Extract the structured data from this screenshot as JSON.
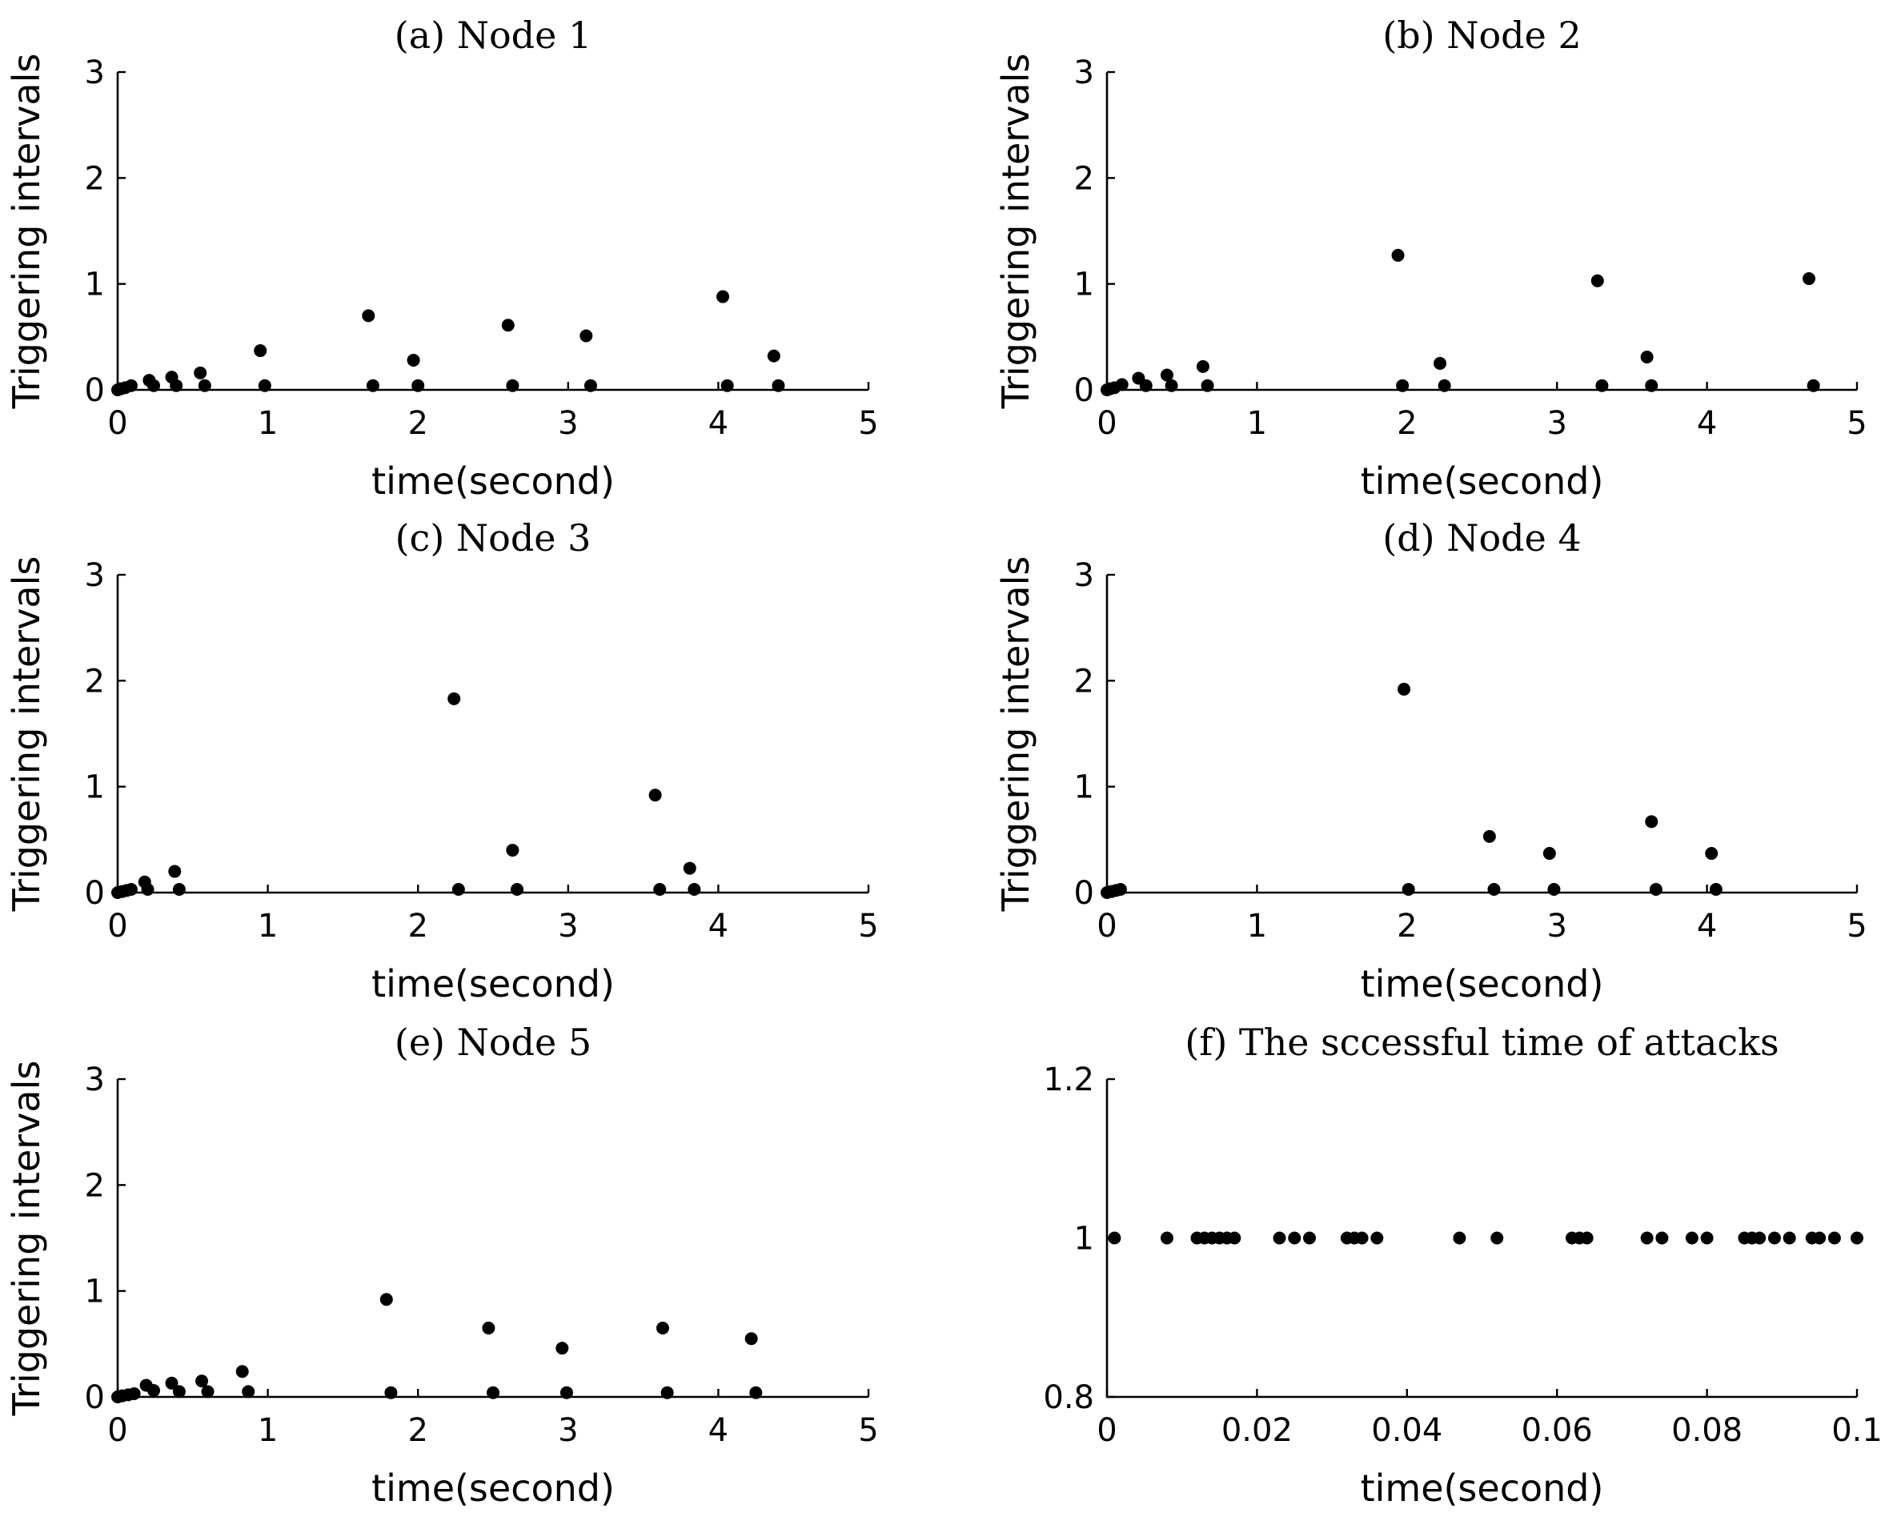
{
  "chart_data": [
    {
      "id": "a",
      "type": "scatter",
      "title": "(a) Node 1",
      "xlabel": "time(second)",
      "ylabel": "Triggering intervals",
      "xlim": [
        0,
        5
      ],
      "ylim": [
        0,
        3
      ],
      "xticks": [
        "0",
        "1",
        "2",
        "3",
        "4",
        "5"
      ],
      "yticks": [
        "0",
        "1",
        "2",
        "3"
      ],
      "x": [
        0.0,
        0.02,
        0.05,
        0.09,
        0.21,
        0.24,
        0.36,
        0.39,
        0.55,
        0.58,
        0.95,
        0.98,
        1.67,
        1.7,
        1.97,
        2.0,
        2.6,
        2.63,
        3.12,
        3.15,
        4.03,
        4.06,
        4.37,
        4.4
      ],
      "y": [
        0.0,
        0.01,
        0.02,
        0.04,
        0.09,
        0.04,
        0.12,
        0.04,
        0.16,
        0.04,
        0.37,
        0.04,
        0.7,
        0.04,
        0.28,
        0.04,
        0.61,
        0.04,
        0.51,
        0.04,
        0.88,
        0.04,
        0.32,
        0.04
      ]
    },
    {
      "id": "b",
      "type": "scatter",
      "title": "(b) Node 2",
      "xlabel": "time(second)",
      "ylabel": "Triggering intervals",
      "xlim": [
        0,
        5
      ],
      "ylim": [
        0,
        3
      ],
      "xticks": [
        "0",
        "1",
        "2",
        "3",
        "4",
        "5"
      ],
      "yticks": [
        "0",
        "1",
        "2",
        "3"
      ],
      "x": [
        0.0,
        0.02,
        0.05,
        0.1,
        0.21,
        0.26,
        0.4,
        0.43,
        0.64,
        0.67,
        1.94,
        1.97,
        2.22,
        2.25,
        3.27,
        3.3,
        3.6,
        3.63,
        4.68,
        4.71
      ],
      "y": [
        0.0,
        0.01,
        0.02,
        0.05,
        0.11,
        0.04,
        0.14,
        0.04,
        0.22,
        0.04,
        1.27,
        0.04,
        0.25,
        0.04,
        1.03,
        0.04,
        0.31,
        0.04,
        1.05,
        0.04
      ]
    },
    {
      "id": "c",
      "type": "scatter",
      "title": "(c) Node 3",
      "xlabel": "time(second)",
      "ylabel": "Triggering intervals",
      "xlim": [
        0,
        5
      ],
      "ylim": [
        0,
        3
      ],
      "xticks": [
        "0",
        "1",
        "2",
        "3",
        "4",
        "5"
      ],
      "yticks": [
        "0",
        "1",
        "2",
        "3"
      ],
      "x": [
        0.0,
        0.03,
        0.06,
        0.09,
        0.18,
        0.2,
        0.38,
        0.41,
        2.24,
        2.27,
        2.63,
        2.66,
        3.58,
        3.61,
        3.81,
        3.84
      ],
      "y": [
        0.0,
        0.01,
        0.02,
        0.03,
        0.1,
        0.03,
        0.2,
        0.03,
        1.83,
        0.03,
        0.4,
        0.03,
        0.92,
        0.03,
        0.23,
        0.03
      ]
    },
    {
      "id": "d",
      "type": "scatter",
      "title": "(d) Node 4",
      "xlabel": "time(second)",
      "ylabel": "Triggering intervals",
      "xlim": [
        0,
        5
      ],
      "ylim": [
        0,
        3
      ],
      "xticks": [
        "0",
        "1",
        "2",
        "3",
        "4",
        "5"
      ],
      "yticks": [
        "0",
        "1",
        "2",
        "3"
      ],
      "x": [
        0.0,
        0.03,
        0.06,
        0.09,
        1.98,
        2.01,
        2.55,
        2.58,
        2.95,
        2.98,
        3.63,
        3.66,
        4.03,
        4.06
      ],
      "y": [
        0.0,
        0.01,
        0.02,
        0.03,
        1.92,
        0.03,
        0.53,
        0.03,
        0.37,
        0.03,
        0.67,
        0.03,
        0.37,
        0.03
      ]
    },
    {
      "id": "e",
      "type": "scatter",
      "title": "(e) Node 5",
      "xlabel": "time(second)",
      "ylabel": "Triggering intervals",
      "xlim": [
        0,
        5
      ],
      "ylim": [
        0,
        3
      ],
      "xticks": [
        "0",
        "1",
        "2",
        "3",
        "4",
        "5"
      ],
      "yticks": [
        "0",
        "1",
        "2",
        "3"
      ],
      "x": [
        0.0,
        0.03,
        0.07,
        0.11,
        0.19,
        0.24,
        0.36,
        0.41,
        0.56,
        0.6,
        0.83,
        0.87,
        1.79,
        1.82,
        2.47,
        2.5,
        2.96,
        2.99,
        3.63,
        3.66,
        4.22,
        4.25
      ],
      "y": [
        0.0,
        0.01,
        0.02,
        0.03,
        0.11,
        0.06,
        0.13,
        0.05,
        0.15,
        0.05,
        0.24,
        0.05,
        0.92,
        0.04,
        0.65,
        0.04,
        0.46,
        0.04,
        0.65,
        0.04,
        0.55,
        0.04
      ]
    },
    {
      "id": "f",
      "type": "scatter",
      "title": "(f) The sccessful time of attacks",
      "xlabel": "time(second)",
      "ylabel": "",
      "xlim": [
        0,
        0.1
      ],
      "ylim": [
        0.8,
        1.2
      ],
      "xticks": [
        "0",
        "0.02",
        "0.04",
        "0.06",
        "0.08",
        "0.1"
      ],
      "yticks": [
        "0.8",
        "1",
        "1.2"
      ],
      "x": [
        0.001,
        0.008,
        0.012,
        0.013,
        0.014,
        0.015,
        0.016,
        0.017,
        0.023,
        0.025,
        0.027,
        0.032,
        0.033,
        0.034,
        0.036,
        0.047,
        0.052,
        0.062,
        0.063,
        0.064,
        0.072,
        0.074,
        0.078,
        0.08,
        0.085,
        0.086,
        0.087,
        0.089,
        0.091,
        0.094,
        0.095,
        0.097,
        0.1
      ],
      "y": [
        1,
        1,
        1,
        1,
        1,
        1,
        1,
        1,
        1,
        1,
        1,
        1,
        1,
        1,
        1,
        1,
        1,
        1,
        1,
        1,
        1,
        1,
        1,
        1,
        1,
        1,
        1,
        1,
        1,
        1,
        1,
        1,
        1
      ]
    }
  ]
}
